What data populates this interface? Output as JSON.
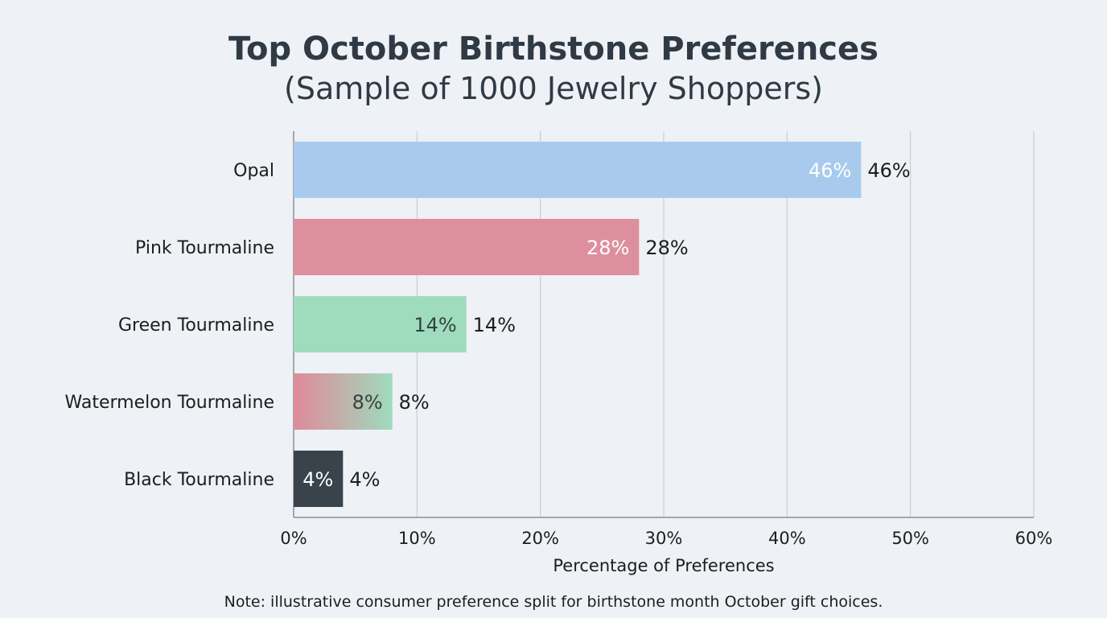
{
  "chart_data": {
    "type": "bar",
    "orientation": "horizontal",
    "title": "Top October Birthstone Preferences",
    "subtitle": "(Sample of 1000 Jewelry Shoppers)",
    "xlabel": "Percentage of Preferences",
    "ylabel": "",
    "xlim": [
      0,
      60
    ],
    "x_ticks": [
      "0%",
      "10%",
      "20%",
      "30%",
      "40%",
      "50%",
      "60%"
    ],
    "grid": "vertical",
    "categories": [
      "Opal",
      "Pink Tourmaline",
      "Green Tourmaline",
      "Watermelon Tourmaline",
      "Black Tourmaline"
    ],
    "values": [
      46,
      28,
      14,
      8,
      4
    ],
    "data_labels": [
      "46%",
      "28%",
      "14%",
      "8%",
      "4%"
    ],
    "colors": [
      [
        "#a8cbed"
      ],
      [
        "#de8f9e"
      ],
      [
        "#9fdbbd"
      ],
      [
        "#e08a9a",
        "#9fdbbd"
      ],
      [
        "#3a434c"
      ]
    ],
    "inner_label_colors": [
      "#ffffff",
      "#ffffff",
      "#34433f",
      "#34433f",
      "#ffffff"
    ],
    "note": "Note: illustrative consumer preference split for birthstone month October gift choices."
  }
}
